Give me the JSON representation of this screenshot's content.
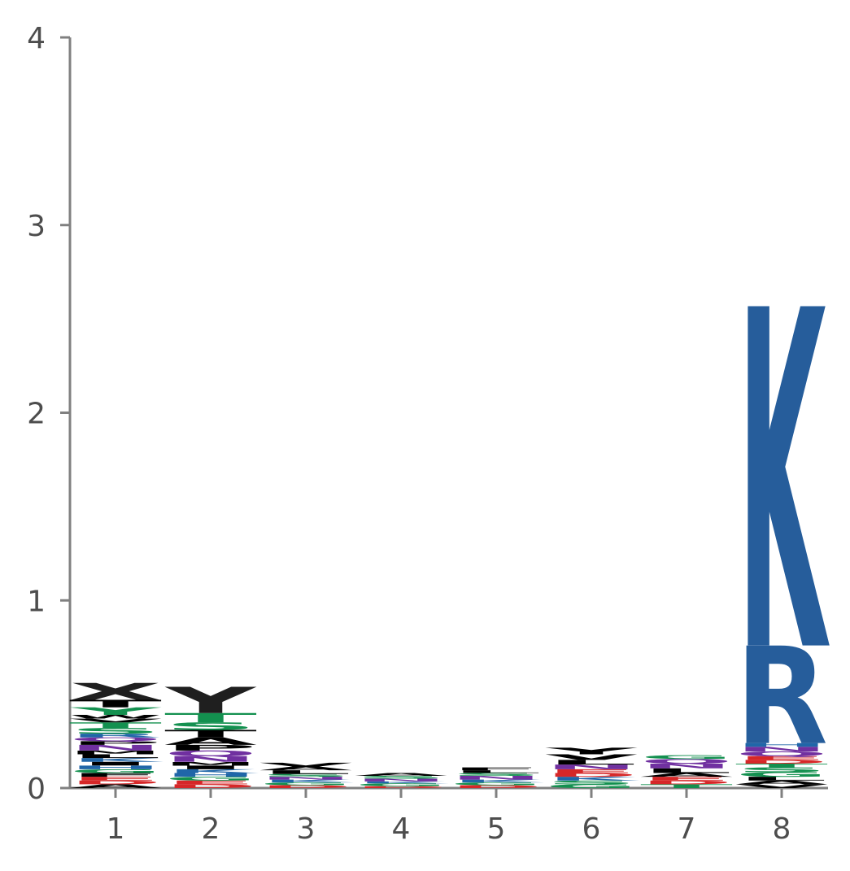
{
  "chart_data": {
    "type": "sequence-logo",
    "title": "",
    "xlabel": "",
    "ylabel": "",
    "ylim": [
      0,
      4
    ],
    "y_ticks": [
      "0",
      "1",
      "2",
      "3",
      "4"
    ],
    "categories": [
      "1",
      "2",
      "3",
      "4",
      "5",
      "6",
      "7",
      "8"
    ],
    "positions": [
      {
        "pos": "1",
        "letters": [
          {
            "char": "A",
            "value": 0.02,
            "color": "#000000"
          },
          {
            "char": "D",
            "value": 0.02,
            "color": "#d62728"
          },
          {
            "char": "E",
            "value": 0.02,
            "color": "#d62728"
          },
          {
            "char": "F",
            "value": 0.02,
            "color": "#000000"
          },
          {
            "char": "G",
            "value": 0.02,
            "color": "#13904f"
          },
          {
            "char": "H",
            "value": 0.02,
            "color": "#2066a8"
          },
          {
            "char": "I",
            "value": 0.02,
            "color": "#000000"
          },
          {
            "char": "K",
            "value": 0.02,
            "color": "#2066a8"
          },
          {
            "char": "L",
            "value": 0.02,
            "color": "#000000"
          },
          {
            "char": "M",
            "value": 0.02,
            "color": "#000000"
          },
          {
            "char": "N",
            "value": 0.03,
            "color": "#7030a0"
          },
          {
            "char": "P",
            "value": 0.02,
            "color": "#000000"
          },
          {
            "char": "Q",
            "value": 0.02,
            "color": "#7030a0"
          },
          {
            "char": "R",
            "value": 0.02,
            "color": "#2066a8"
          },
          {
            "char": "S",
            "value": 0.03,
            "color": "#13904f"
          },
          {
            "char": "T",
            "value": 0.03,
            "color": "#13904f"
          },
          {
            "char": "V",
            "value": 0.02,
            "color": "#000000"
          },
          {
            "char": "W",
            "value": 0.02,
            "color": "#000000"
          },
          {
            "char": "Y",
            "value": 0.04,
            "color": "#13904f"
          },
          {
            "char": "T",
            "value": 0.04,
            "color": "#000000"
          },
          {
            "char": "X",
            "value": 0.09,
            "color": "#1f1f1f"
          }
        ]
      },
      {
        "pos": "2",
        "letters": [
          {
            "char": "D",
            "value": 0.02,
            "color": "#d62728"
          },
          {
            "char": "E",
            "value": 0.02,
            "color": "#d62728"
          },
          {
            "char": "G",
            "value": 0.02,
            "color": "#13904f"
          },
          {
            "char": "H",
            "value": 0.02,
            "color": "#2066a8"
          },
          {
            "char": "K",
            "value": 0.02,
            "color": "#2066a8"
          },
          {
            "char": "I",
            "value": 0.02,
            "color": "#000000"
          },
          {
            "char": "M",
            "value": 0.02,
            "color": "#000000"
          },
          {
            "char": "N",
            "value": 0.03,
            "color": "#7030a0"
          },
          {
            "char": "Q",
            "value": 0.03,
            "color": "#7030a0"
          },
          {
            "char": "P",
            "value": 0.03,
            "color": "#000000"
          },
          {
            "char": "A",
            "value": 0.04,
            "color": "#000000"
          },
          {
            "char": "T",
            "value": 0.04,
            "color": "#000000"
          },
          {
            "char": "S",
            "value": 0.04,
            "color": "#13904f"
          },
          {
            "char": "T",
            "value": 0.05,
            "color": "#13904f"
          },
          {
            "char": "Y",
            "value": 0.14,
            "color": "#1f1f1f"
          }
        ]
      },
      {
        "pos": "3",
        "letters": [
          {
            "char": "D",
            "value": 0.015,
            "color": "#d62728"
          },
          {
            "char": "G",
            "value": 0.015,
            "color": "#13904f"
          },
          {
            "char": "K",
            "value": 0.015,
            "color": "#2066a8"
          },
          {
            "char": "N",
            "value": 0.015,
            "color": "#7030a0"
          },
          {
            "char": "S",
            "value": 0.015,
            "color": "#13904f"
          },
          {
            "char": "L",
            "value": 0.02,
            "color": "#000000"
          },
          {
            "char": "A",
            "value": 0.02,
            "color": "#000000"
          },
          {
            "char": "V",
            "value": 0.02,
            "color": "#000000"
          }
        ]
      },
      {
        "pos": "4",
        "letters": [
          {
            "char": "D",
            "value": 0.01,
            "color": "#d62728"
          },
          {
            "char": "G",
            "value": 0.015,
            "color": "#13904f"
          },
          {
            "char": "K",
            "value": 0.01,
            "color": "#2066a8"
          },
          {
            "char": "N",
            "value": 0.015,
            "color": "#7030a0"
          },
          {
            "char": "S",
            "value": 0.015,
            "color": "#13904f"
          },
          {
            "char": "A",
            "value": 0.015,
            "color": "#000000"
          }
        ]
      },
      {
        "pos": "5",
        "letters": [
          {
            "char": "D",
            "value": 0.015,
            "color": "#d62728"
          },
          {
            "char": "G",
            "value": 0.015,
            "color": "#13904f"
          },
          {
            "char": "K",
            "value": 0.015,
            "color": "#2066a8"
          },
          {
            "char": "N",
            "value": 0.02,
            "color": "#7030a0"
          },
          {
            "char": "S",
            "value": 0.015,
            "color": "#13904f"
          },
          {
            "char": "L",
            "value": 0.015,
            "color": "#000000"
          },
          {
            "char": "F",
            "value": 0.015,
            "color": "#000000"
          }
        ]
      },
      {
        "pos": "6",
        "letters": [
          {
            "char": "G",
            "value": 0.02,
            "color": "#13904f"
          },
          {
            "char": "S",
            "value": 0.02,
            "color": "#13904f"
          },
          {
            "char": "K",
            "value": 0.02,
            "color": "#2066a8"
          },
          {
            "char": "D",
            "value": 0.02,
            "color": "#d62728"
          },
          {
            "char": "E",
            "value": 0.02,
            "color": "#d62728"
          },
          {
            "char": "N",
            "value": 0.025,
            "color": "#7030a0"
          },
          {
            "char": "L",
            "value": 0.025,
            "color": "#000000"
          },
          {
            "char": "V",
            "value": 0.03,
            "color": "#000000"
          },
          {
            "char": "Y",
            "value": 0.035,
            "color": "#000000"
          }
        ]
      },
      {
        "pos": "7",
        "letters": [
          {
            "char": "T",
            "value": 0.02,
            "color": "#13904f"
          },
          {
            "char": "D",
            "value": 0.02,
            "color": "#d62728"
          },
          {
            "char": "E",
            "value": 0.02,
            "color": "#d62728"
          },
          {
            "char": "A",
            "value": 0.02,
            "color": "#000000"
          },
          {
            "char": "L",
            "value": 0.025,
            "color": "#000000"
          },
          {
            "char": "N",
            "value": 0.025,
            "color": "#7030a0"
          },
          {
            "char": "Q",
            "value": 0.025,
            "color": "#7030a0"
          },
          {
            "char": "G",
            "value": 0.02,
            "color": "#13904f"
          }
        ]
      },
      {
        "pos": "8",
        "letters": [
          {
            "char": "V",
            "value": 0.02,
            "color": "#000000"
          },
          {
            "char": "A",
            "value": 0.02,
            "color": "#000000"
          },
          {
            "char": "L",
            "value": 0.02,
            "color": "#000000"
          },
          {
            "char": "G",
            "value": 0.025,
            "color": "#13904f"
          },
          {
            "char": "S",
            "value": 0.025,
            "color": "#13904f"
          },
          {
            "char": "T",
            "value": 0.02,
            "color": "#13904f"
          },
          {
            "char": "D",
            "value": 0.02,
            "color": "#d62728"
          },
          {
            "char": "E",
            "value": 0.02,
            "color": "#d62728"
          },
          {
            "char": "Q",
            "value": 0.025,
            "color": "#7030a0"
          },
          {
            "char": "N",
            "value": 0.025,
            "color": "#7030a0"
          },
          {
            "char": "H",
            "value": 0.02,
            "color": "#2066a8"
          },
          {
            "char": "R",
            "value": 0.52,
            "color": "#265d9b"
          },
          {
            "char": "K",
            "value": 1.81,
            "color": "#265d9b"
          }
        ]
      }
    ]
  }
}
